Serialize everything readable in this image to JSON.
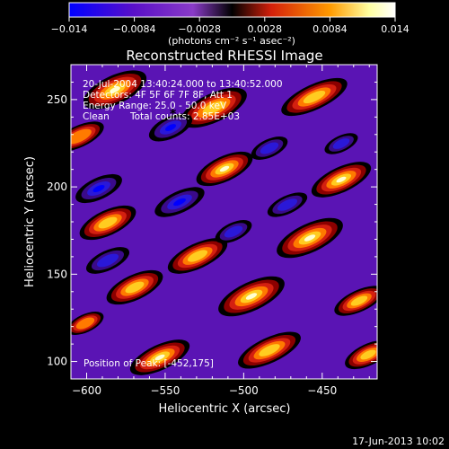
{
  "chart_data": {
    "type": "heatmap",
    "title": "Reconstructed RHESSI Image",
    "xlabel": "Heliocentric X (arcsec)",
    "ylabel": "Heliocentric Y (arcsec)",
    "xlim": [
      -610,
      -415
    ],
    "ylim": [
      90,
      270
    ],
    "x_ticks": [
      -600,
      -550,
      -500,
      -450
    ],
    "x_tick_labels": [
      "−600",
      "−550",
      "−500",
      "−450"
    ],
    "y_ticks": [
      100,
      150,
      200,
      250
    ],
    "y_tick_labels": [
      "100",
      "150",
      "200",
      "250"
    ],
    "colorbar": {
      "range": [
        -0.014,
        0.014
      ],
      "ticks": [
        -0.014,
        -0.0084,
        -0.0028,
        0.0028,
        0.0084,
        0.014
      ],
      "tick_labels": [
        "−0.014",
        "−0.0084",
        "−0.0028",
        "0.0028",
        "0.0084",
        "0.014"
      ],
      "units_label": "(photons cm⁻² s⁻¹ asec⁻²)",
      "colors": [
        "#0000ff",
        "#5500c0",
        "#8a3bc8",
        "#000000",
        "#d4200b",
        "#ff9a00",
        "#ffffcf",
        "#ffffff"
      ]
    },
    "annotations": {
      "time_range": "20-Jul-2004 13:40:24.000 to 13:40:52.000",
      "detectors": "Detectors: 4F 5F 6F 7F 8F, Att 1",
      "energy_range": "Energy Range: 25.0 - 50.0 keV",
      "clean_label": "Clean",
      "total_counts": "Total counts: 2.85E+03",
      "peak_position": "Position of Peak: [-452,175]"
    },
    "marker": {
      "x": -545,
      "y": 242,
      "symbol": "*"
    },
    "peak": {
      "x": -452,
      "y": 175
    }
  },
  "footer": {
    "timestamp": "17-Jun-2013 10:02"
  }
}
